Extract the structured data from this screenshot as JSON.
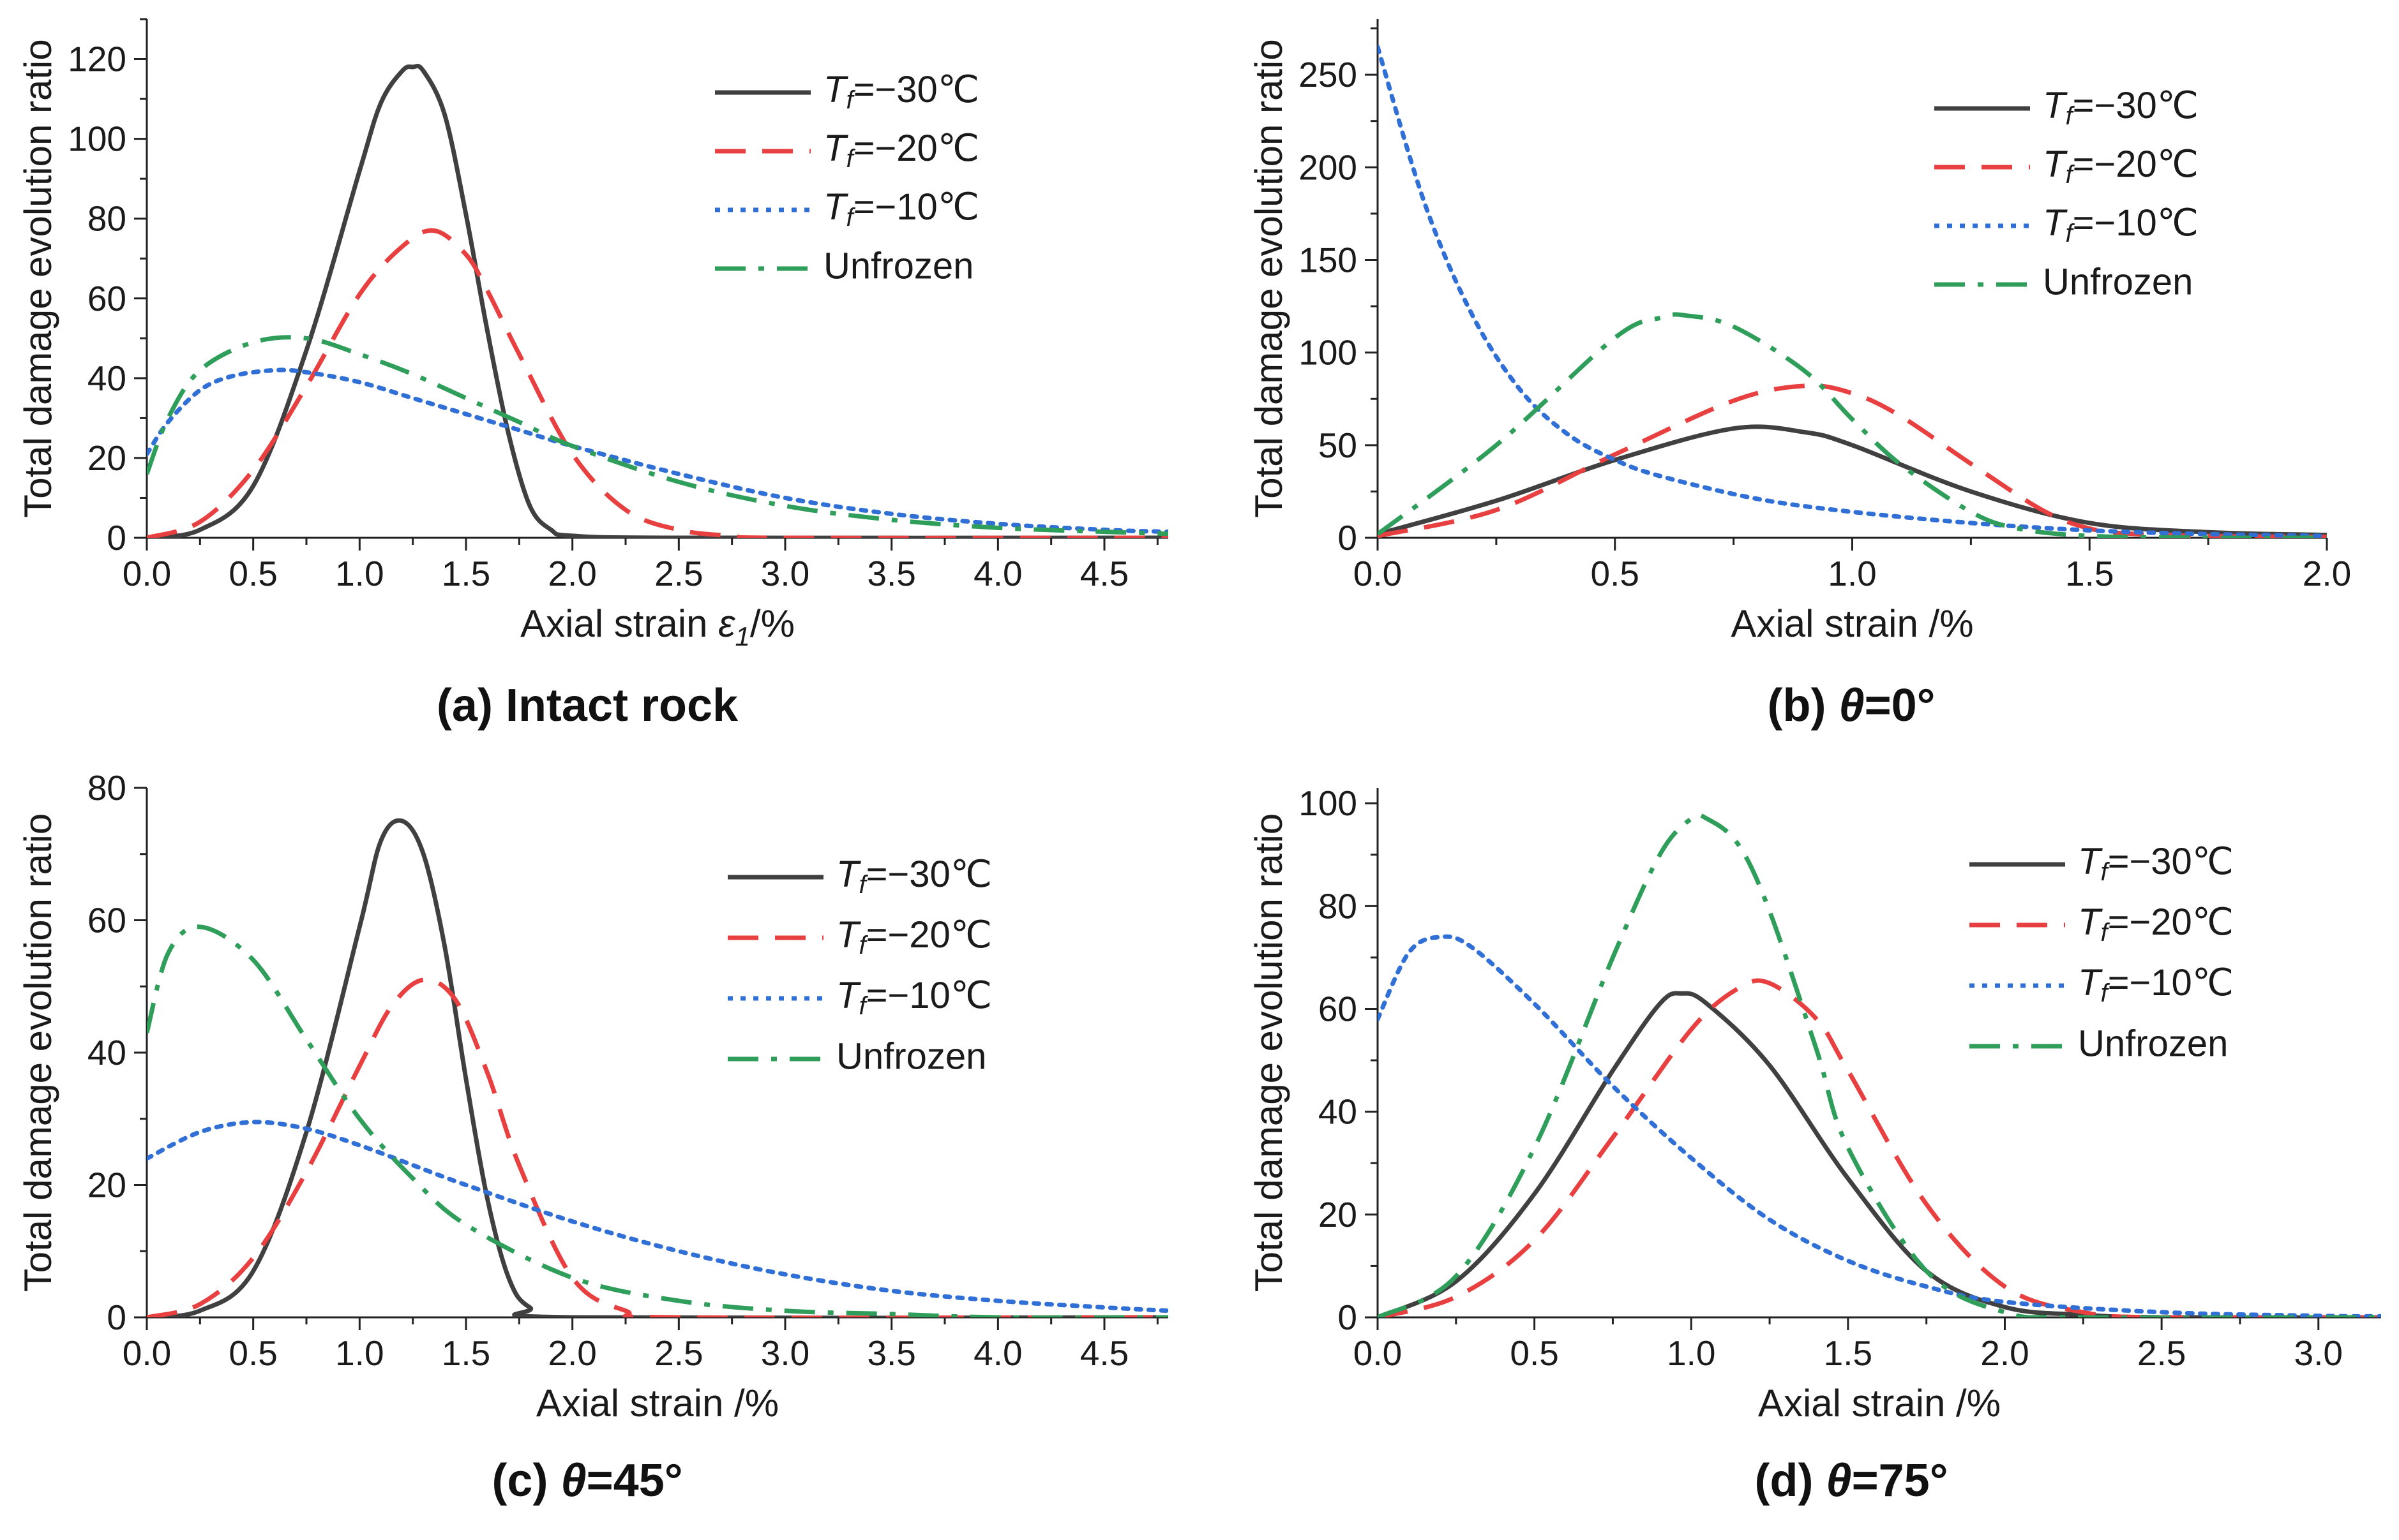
{
  "legend_labels": [
    "T_f=−30℃",
    "T_f=−20℃",
    "T_f=−10℃",
    "Unfrozen"
  ],
  "chart_data": [
    {
      "type": "line",
      "panel": "a",
      "caption": "(a) Intact rock",
      "xlabel": "Axial strain ε1/%",
      "ylabel": "Total damage evolution ratio",
      "xlim": [
        0,
        4.8
      ],
      "ylim": [
        0,
        130
      ],
      "xticks": [
        0.0,
        0.5,
        1.0,
        1.5,
        2.0,
        2.5,
        3.0,
        3.5,
        4.0,
        4.5
      ],
      "yticks": [
        0,
        20,
        40,
        60,
        80,
        100,
        120
      ],
      "legend_position": "top-right",
      "series": [
        {
          "name": "T_f=−30℃",
          "color": "#404040",
          "style": "solid",
          "x": [
            0.0,
            0.25,
            0.5,
            0.75,
            1.0,
            1.1,
            1.2,
            1.25,
            1.3,
            1.4,
            1.5,
            1.6,
            1.7,
            1.8,
            1.9,
            2.0,
            2.5,
            4.8
          ],
          "y": [
            0.0,
            2.0,
            13.0,
            47.0,
            92.0,
            109.0,
            117.0,
            118.0,
            117.0,
            106.0,
            81.0,
            52.0,
            26.0,
            8.0,
            2.0,
            0.5,
            0.0,
            0.0
          ]
        },
        {
          "name": "T_f=−20℃",
          "color": "#e84040",
          "style": "dashed",
          "x": [
            0.0,
            0.25,
            0.5,
            0.75,
            1.0,
            1.2,
            1.35,
            1.5,
            1.6,
            1.75,
            2.0,
            2.25,
            2.5,
            2.75,
            3.0,
            4.8
          ],
          "y": [
            0.0,
            4.0,
            17.0,
            38.0,
            61.0,
            73.0,
            77.0,
            71.0,
            62.0,
            46.0,
            21.0,
            7.0,
            2.0,
            0.5,
            0.0,
            0.0
          ]
        },
        {
          "name": "T_f=−10℃",
          "color": "#2f6fd6",
          "style": "dotted",
          "x": [
            0.0,
            0.1,
            0.25,
            0.4,
            0.6,
            0.75,
            1.0,
            1.25,
            1.5,
            1.75,
            2.0,
            2.5,
            3.0,
            3.5,
            4.0,
            4.5,
            4.8
          ],
          "y": [
            21.0,
            29.0,
            37.0,
            40.5,
            42.0,
            41.5,
            39.0,
            35.0,
            31.0,
            27.0,
            23.0,
            16.0,
            10.0,
            6.0,
            3.5,
            2.0,
            1.5
          ]
        },
        {
          "name": "Unfrozen",
          "color": "#2e9e5a",
          "style": "dashdot",
          "x": [
            0.0,
            0.1,
            0.25,
            0.5,
            0.75,
            1.0,
            1.25,
            1.5,
            1.75,
            2.0,
            2.5,
            3.0,
            3.5,
            4.0,
            4.5,
            4.8
          ],
          "y": [
            16.0,
            30.0,
            42.0,
            49.0,
            50.0,
            46.0,
            41.0,
            35.0,
            29.0,
            23.0,
            14.0,
            8.0,
            4.5,
            2.5,
            1.5,
            1.0
          ]
        }
      ]
    },
    {
      "type": "line",
      "panel": "b",
      "caption": "(b) θ=0°",
      "xlabel": "Axial strain /%",
      "ylabel": "Total damage evolution ratio",
      "xlim": [
        0,
        2.0
      ],
      "ylim": [
        0,
        280
      ],
      "xticks": [
        0.0,
        0.5,
        1.0,
        1.5,
        2.0
      ],
      "yticks": [
        0,
        50,
        100,
        150,
        200,
        250
      ],
      "legend_position": "top-right",
      "series": [
        {
          "name": "T_f=−30℃",
          "color": "#404040",
          "style": "solid",
          "x": [
            0.0,
            0.25,
            0.5,
            0.75,
            0.9,
            1.0,
            1.25,
            1.5,
            1.75,
            2.0
          ],
          "y": [
            2.0,
            20.0,
            42.0,
            59.0,
            57.0,
            50.0,
            25.0,
            8.0,
            3.0,
            1.5
          ]
        },
        {
          "name": "T_f=−20℃",
          "color": "#e84040",
          "style": "dashed",
          "x": [
            0.0,
            0.25,
            0.5,
            0.75,
            0.9,
            1.0,
            1.1,
            1.25,
            1.4,
            1.5,
            1.6,
            1.75,
            2.0
          ],
          "y": [
            1.0,
            15.0,
            45.0,
            74.0,
            82.0,
            78.0,
            66.0,
            40.0,
            15.0,
            5.0,
            2.0,
            1.0,
            0.5
          ]
        },
        {
          "name": "T_f=−10℃",
          "color": "#2f6fd6",
          "style": "dotted",
          "x": [
            0.0,
            0.1,
            0.2,
            0.3,
            0.4,
            0.5,
            0.6,
            0.8,
            1.0,
            1.25,
            1.5,
            1.75,
            2.0
          ],
          "y": [
            265.0,
            180.0,
            120.0,
            80.0,
            56.0,
            42.0,
            33.0,
            21.0,
            14.0,
            8.0,
            4.0,
            2.0,
            1.0
          ]
        },
        {
          "name": "Unfrozen",
          "color": "#2e9e5a",
          "style": "dashdot",
          "x": [
            0.0,
            0.25,
            0.5,
            0.6,
            0.65,
            0.75,
            0.9,
            1.0,
            1.1,
            1.25,
            1.35,
            1.5,
            1.75,
            2.0
          ],
          "y": [
            2.0,
            50.0,
            108.0,
            119.0,
            120.0,
            114.0,
            90.0,
            64.0,
            40.0,
            14.0,
            5.0,
            1.0,
            0.0,
            0.0
          ]
        }
      ]
    },
    {
      "type": "line",
      "panel": "c",
      "caption": "(c) θ=45°",
      "xlabel": "Axial strain /%",
      "ylabel": "Total damage evolution ratio",
      "xlim": [
        0,
        4.8
      ],
      "ylim": [
        0,
        80
      ],
      "xticks": [
        0.0,
        0.5,
        1.0,
        1.5,
        2.0,
        2.5,
        3.0,
        3.5,
        4.0,
        4.5
      ],
      "yticks": [
        0,
        20,
        40,
        60,
        80
      ],
      "legend_position": "top-right",
      "series": [
        {
          "name": "T_f=−30℃",
          "color": "#404040",
          "style": "solid",
          "x": [
            0.0,
            0.25,
            0.5,
            0.75,
            1.0,
            1.1,
            1.2,
            1.3,
            1.4,
            1.5,
            1.6,
            1.7,
            1.8,
            2.0,
            4.8
          ],
          "y": [
            0.0,
            1.0,
            7.0,
            28.0,
            59.0,
            72.0,
            75.0,
            70.0,
            56.0,
            36.0,
            18.0,
            6.0,
            1.5,
            0.0,
            0.0
          ]
        },
        {
          "name": "T_f=−20℃",
          "color": "#e84040",
          "style": "dashed",
          "x": [
            0.0,
            0.25,
            0.5,
            0.75,
            1.0,
            1.15,
            1.3,
            1.45,
            1.6,
            1.75,
            2.0,
            2.25,
            2.5,
            4.8
          ],
          "y": [
            0.0,
            2.0,
            9.0,
            22.0,
            38.0,
            47.0,
            51.0,
            48.0,
            37.0,
            23.0,
            6.0,
            1.0,
            0.0,
            0.0
          ]
        },
        {
          "name": "T_f=−10℃",
          "color": "#2f6fd6",
          "style": "dotted",
          "x": [
            0.0,
            0.25,
            0.5,
            0.75,
            1.0,
            1.25,
            1.5,
            2.0,
            2.5,
            3.0,
            3.5,
            4.0,
            4.5,
            4.8
          ],
          "y": [
            24.0,
            28.0,
            29.5,
            28.5,
            26.0,
            23.0,
            20.0,
            14.5,
            10.0,
            6.5,
            4.0,
            2.5,
            1.5,
            1.0
          ]
        },
        {
          "name": "Unfrozen",
          "color": "#2e9e5a",
          "style": "dashdot",
          "x": [
            0.0,
            0.1,
            0.25,
            0.5,
            0.75,
            1.0,
            1.25,
            1.5,
            2.0,
            2.5,
            3.0,
            3.5,
            4.0,
            4.8
          ],
          "y": [
            43.0,
            55.0,
            59.0,
            54.0,
            42.0,
            30.0,
            21.0,
            14.0,
            6.0,
            2.5,
            1.0,
            0.5,
            0.0,
            0.0
          ]
        }
      ]
    },
    {
      "type": "line",
      "panel": "d",
      "caption": "(d) θ=75°",
      "xlabel": "Axial strain /%",
      "ylabel": "Total damage evolution ratio",
      "xlim": [
        0,
        3.2
      ],
      "ylim": [
        0,
        103
      ],
      "xticks": [
        0.0,
        0.5,
        1.0,
        1.5,
        2.0,
        2.5,
        3.0
      ],
      "yticks": [
        0,
        20,
        40,
        60,
        80,
        100
      ],
      "legend_position": "top-right",
      "series": [
        {
          "name": "T_f=−30℃",
          "color": "#404040",
          "style": "solid",
          "x": [
            0.0,
            0.25,
            0.5,
            0.75,
            0.9,
            0.97,
            1.05,
            1.25,
            1.5,
            1.75,
            2.0,
            2.25,
            2.5,
            3.2
          ],
          "y": [
            0.0,
            7.0,
            24.0,
            48.0,
            61.0,
            63.0,
            61.0,
            49.0,
            27.0,
            9.0,
            2.0,
            0.5,
            0.0,
            0.0
          ]
        },
        {
          "name": "T_f=−20℃",
          "color": "#e84040",
          "style": "dashed",
          "x": [
            0.0,
            0.25,
            0.5,
            0.75,
            1.0,
            1.15,
            1.25,
            1.4,
            1.5,
            1.75,
            2.0,
            2.25,
            2.5,
            3.2
          ],
          "y": [
            0.0,
            4.0,
            15.0,
            35.0,
            56.0,
            64.0,
            65.0,
            58.0,
            48.0,
            22.0,
            6.0,
            1.0,
            0.0,
            0.0
          ]
        },
        {
          "name": "T_f=−10℃",
          "color": "#2f6fd6",
          "style": "dotted",
          "x": [
            0.0,
            0.1,
            0.2,
            0.3,
            0.5,
            0.75,
            1.0,
            1.25,
            1.5,
            1.75,
            2.0,
            2.5,
            3.0,
            3.2
          ],
          "y": [
            58.0,
            71.0,
            74.0,
            72.0,
            61.0,
            45.0,
            31.0,
            19.0,
            11.0,
            6.0,
            3.0,
            1.0,
            0.3,
            0.2
          ]
        },
        {
          "name": "Unfrozen",
          "color": "#2e9e5a",
          "style": "dashdot",
          "x": [
            0.0,
            0.25,
            0.5,
            0.75,
            0.9,
            1.0,
            1.05,
            1.15,
            1.25,
            1.4,
            1.5,
            1.75,
            2.0,
            2.25,
            3.2
          ],
          "y": [
            0.0,
            8.0,
            33.0,
            70.0,
            90.0,
            97.0,
            97.0,
            92.0,
            79.0,
            52.0,
            33.0,
            9.0,
            1.0,
            0.0,
            0.0
          ]
        }
      ]
    }
  ]
}
